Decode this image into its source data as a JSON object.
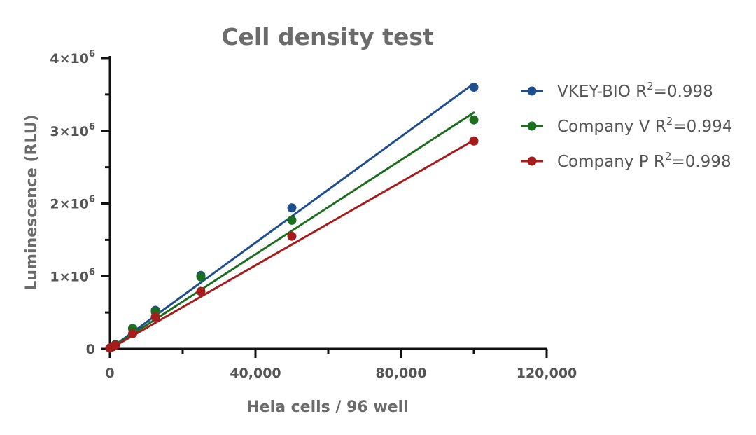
{
  "chart_data": {
    "type": "scatter",
    "title": "Cell density test",
    "xlabel": "Hela cells / 96 well",
    "ylabel": "Luminescence (RLU)",
    "xlim": [
      0,
      120000
    ],
    "ylim": [
      0,
      4000000
    ],
    "x_major_ticks": [
      0,
      40000,
      80000,
      120000
    ],
    "x_tick_labels": [
      "0",
      "40,000",
      "80,000",
      "120,000"
    ],
    "x_minor_ticks": [
      20000,
      60000,
      100000
    ],
    "y_major_ticks": [
      0,
      1000000,
      2000000,
      3000000,
      4000000
    ],
    "y_tick_bases": [
      "0",
      "1×10",
      "2×10",
      "3×10",
      "4×10"
    ],
    "y_tick_exps": [
      "",
      "6",
      "6",
      "6",
      "6"
    ],
    "y_minor_ticks": [
      500000,
      1500000,
      2500000,
      3500000
    ],
    "grid": false,
    "legend_position": "right",
    "fit": "linear",
    "series": [
      {
        "name": "VKEY-BIO",
        "r2_text": "0.998",
        "color": "#1f4e8f",
        "x": [
          0,
          781,
          1562,
          6250,
          12500,
          25000,
          50000,
          100000
        ],
        "y": [
          10000,
          30000,
          60000,
          280000,
          530000,
          1010000,
          1940000,
          3600000
        ],
        "fit_line": {
          "x": [
            0,
            100000
          ],
          "y": [
            0,
            3650000
          ]
        }
      },
      {
        "name": "Company V",
        "r2_text": "0.994",
        "color": "#1a6e1e",
        "x": [
          0,
          781,
          1562,
          6250,
          12500,
          25000,
          50000,
          100000
        ],
        "y": [
          10000,
          30000,
          60000,
          280000,
          510000,
          990000,
          1770000,
          3150000
        ],
        "fit_line": {
          "x": [
            0,
            100000
          ],
          "y": [
            0,
            3250000
          ]
        }
      },
      {
        "name": "Company P",
        "r2_text": "0.998",
        "color": "#a51c1c",
        "x": [
          0,
          781,
          1562,
          6250,
          12500,
          25000,
          50000,
          100000
        ],
        "y": [
          10000,
          30000,
          50000,
          210000,
          440000,
          790000,
          1550000,
          2860000
        ],
        "fit_line": {
          "x": [
            0,
            100000
          ],
          "y": [
            0,
            2870000
          ]
        }
      }
    ]
  },
  "legend": {
    "r_symbol": "R",
    "r_exponent": "2",
    "equals": "="
  }
}
